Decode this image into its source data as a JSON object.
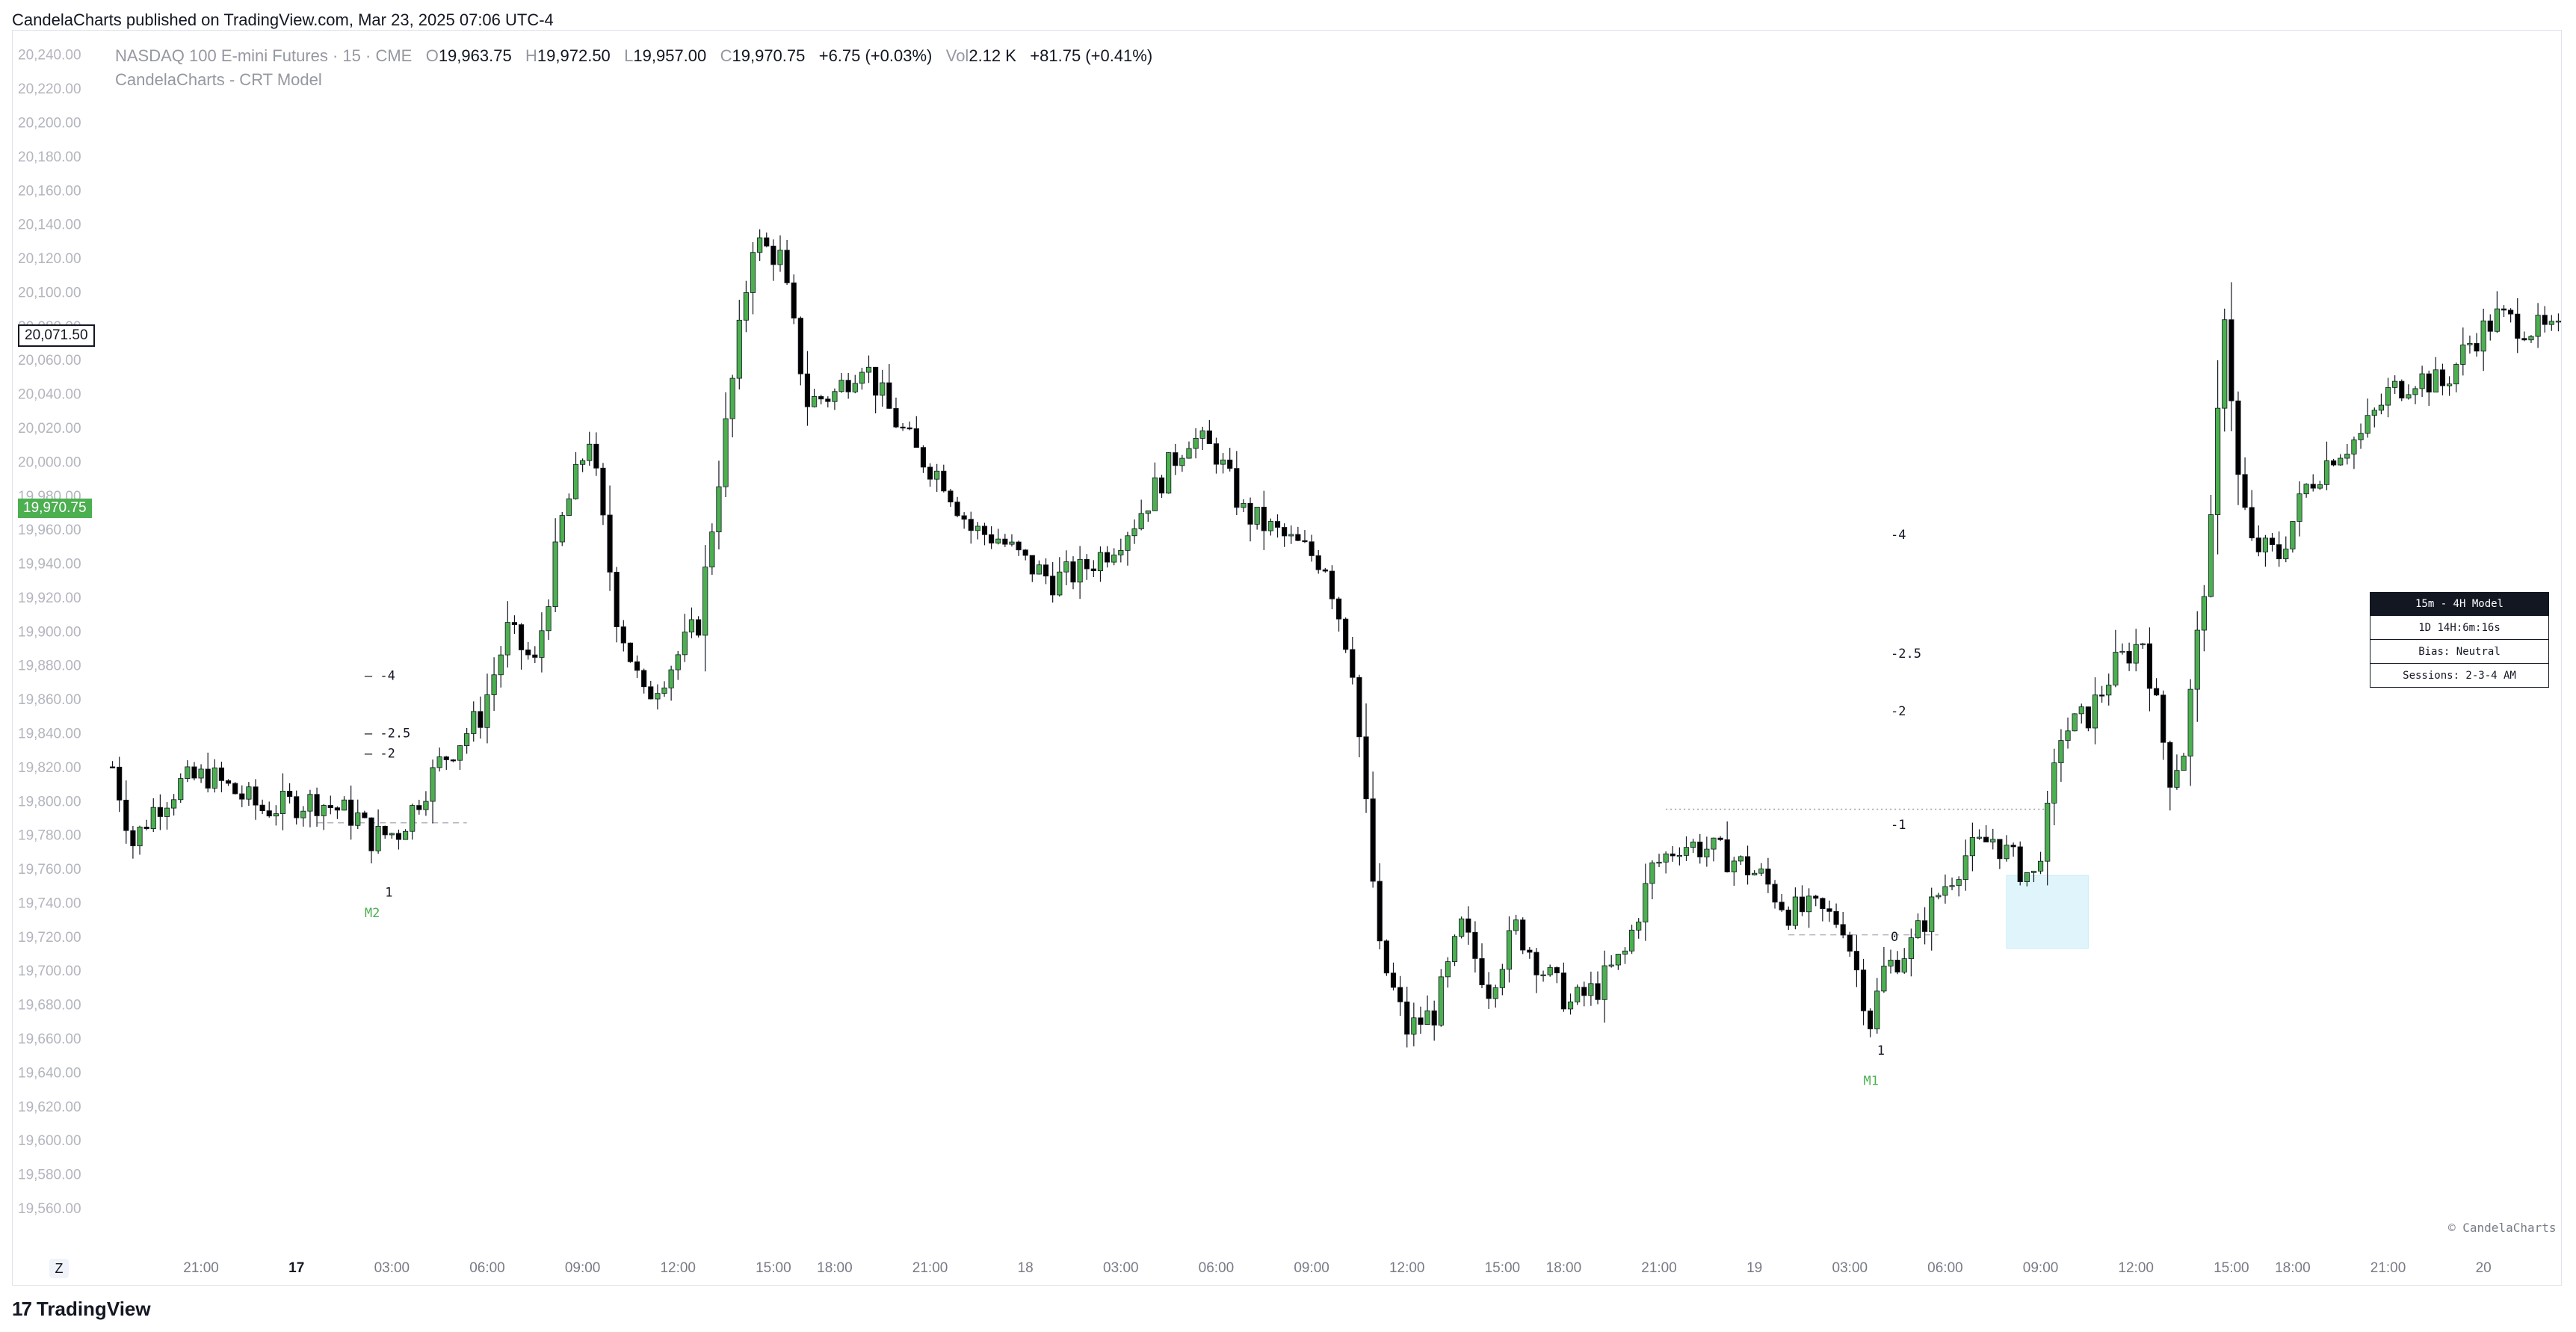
{
  "header": {
    "published": "CandelaCharts published on TradingView.com, Mar 23, 2025 07:06 UTC-4"
  },
  "legend": {
    "symbol": "NASDAQ 100 E-mini Futures · 15 · CME",
    "o_label": "O",
    "o_value": "19,963.75",
    "h_label": "H",
    "h_value": "19,972.50",
    "l_label": "L",
    "l_value": "19,957.00",
    "c_label": "C",
    "c_value": "19,970.75",
    "change": "+6.75 (+0.03%)",
    "vol_label": "Vol",
    "vol_value": "2.12 K",
    "vol_change": "+81.75 (+0.41%)",
    "indicator": "CandelaCharts - CRT Model"
  },
  "price_tags": {
    "crosshair": "20,071.50",
    "last": "19,970.75"
  },
  "info_table": {
    "title": "15m - 4H Model",
    "row1": "1D 14H:6m:16s",
    "row2": "Bias: Neutral",
    "row3": "Sessions: 2-3-4 AM"
  },
  "watermark": "© CandelaCharts",
  "footer": {
    "brand": "TradingView",
    "mark": "17"
  },
  "z_button": "Z",
  "colors": {
    "up": "#4caf50",
    "down": "#000000",
    "zone": "#e0f5fb",
    "text": "#131722"
  },
  "chart_data": {
    "type": "candlestick",
    "title": "NASDAQ 100 E-mini Futures · 15 · CME",
    "ylim": [
      19545,
      20250
    ],
    "y_ticks": [
      "20,240.00",
      "20,220.00",
      "20,200.00",
      "20,180.00",
      "20,160.00",
      "20,140.00",
      "20,120.00",
      "20,100.00",
      "20,080.00",
      "20,060.00",
      "20,040.00",
      "20,020.00",
      "20,000.00",
      "19,980.00",
      "19,960.00",
      "19,940.00",
      "19,920.00",
      "19,900.00",
      "19,880.00",
      "19,860.00",
      "19,840.00",
      "19,820.00",
      "19,800.00",
      "19,780.00",
      "19,760.00",
      "19,740.00",
      "19,720.00",
      "19,700.00",
      "19,680.00",
      "19,660.00",
      "19,640.00",
      "19,620.00",
      "19,600.00",
      "19,580.00",
      "19,560.00"
    ],
    "x_ticks": [
      {
        "i": 13,
        "label": "21:00"
      },
      {
        "i": 27,
        "label": "17"
      },
      {
        "i": 41,
        "label": "03:00"
      },
      {
        "i": 55,
        "label": "06:00"
      },
      {
        "i": 69,
        "label": "09:00"
      },
      {
        "i": 83,
        "label": "12:00"
      },
      {
        "i": 97,
        "label": "15:00"
      },
      {
        "i": 106,
        "label": "18:00"
      },
      {
        "i": 120,
        "label": "21:00"
      },
      {
        "i": 134,
        "label": "18"
      },
      {
        "i": 148,
        "label": "03:00"
      },
      {
        "i": 162,
        "label": "06:00"
      },
      {
        "i": 176,
        "label": "09:00"
      },
      {
        "i": 190,
        "label": "12:00"
      },
      {
        "i": 204,
        "label": "15:00"
      },
      {
        "i": 213,
        "label": "18:00"
      },
      {
        "i": 227,
        "label": "21:00"
      },
      {
        "i": 241,
        "label": "19"
      },
      {
        "i": 255,
        "label": "03:00"
      },
      {
        "i": 269,
        "label": "06:00"
      },
      {
        "i": 283,
        "label": "09:00"
      },
      {
        "i": 297,
        "label": "12:00"
      },
      {
        "i": 311,
        "label": "15:00"
      },
      {
        "i": 320,
        "label": "18:00"
      },
      {
        "i": 334,
        "label": "21:00"
      },
      {
        "i": 348,
        "label": "20"
      }
    ],
    "bold_x_ticks": [
      "17"
    ],
    "path_anchors": [
      [
        0,
        19820
      ],
      [
        3,
        19775
      ],
      [
        6,
        19795
      ],
      [
        10,
        19810
      ],
      [
        14,
        19815
      ],
      [
        18,
        19805
      ],
      [
        22,
        19795
      ],
      [
        26,
        19798
      ],
      [
        30,
        19800
      ],
      [
        36,
        19790
      ],
      [
        38,
        19778
      ],
      [
        42,
        19782
      ],
      [
        44,
        19795
      ],
      [
        48,
        19822
      ],
      [
        54,
        19850
      ],
      [
        58,
        19900
      ],
      [
        62,
        19880
      ],
      [
        66,
        19965
      ],
      [
        70,
        20015
      ],
      [
        74,
        19910
      ],
      [
        78,
        19860
      ],
      [
        82,
        19880
      ],
      [
        86,
        19905
      ],
      [
        90,
        20020
      ],
      [
        94,
        20130
      ],
      [
        98,
        20120
      ],
      [
        102,
        20035
      ],
      [
        106,
        20040
      ],
      [
        110,
        20060
      ],
      [
        114,
        20030
      ],
      [
        118,
        20005
      ],
      [
        122,
        19990
      ],
      [
        126,
        19960
      ],
      [
        130,
        19955
      ],
      [
        134,
        19940
      ],
      [
        138,
        19930
      ],
      [
        142,
        19935
      ],
      [
        146,
        19948
      ],
      [
        150,
        19965
      ],
      [
        154,
        19990
      ],
      [
        158,
        20015
      ],
      [
        162,
        20005
      ],
      [
        166,
        19970
      ],
      [
        170,
        19960
      ],
      [
        174,
        19950
      ],
      [
        178,
        19940
      ],
      [
        182,
        19880
      ],
      [
        186,
        19710
      ],
      [
        190,
        19665
      ],
      [
        194,
        19675
      ],
      [
        198,
        19725
      ],
      [
        202,
        19690
      ],
      [
        206,
        19725
      ],
      [
        210,
        19700
      ],
      [
        214,
        19680
      ],
      [
        218,
        19690
      ],
      [
        222,
        19710
      ],
      [
        226,
        19760
      ],
      [
        230,
        19775
      ],
      [
        234,
        19772
      ],
      [
        238,
        19765
      ],
      [
        242,
        19755
      ],
      [
        246,
        19735
      ],
      [
        250,
        19735
      ],
      [
        254,
        19728
      ],
      [
        256,
        19700
      ],
      [
        258,
        19670
      ],
      [
        260,
        19700
      ],
      [
        264,
        19715
      ],
      [
        268,
        19745
      ],
      [
        272,
        19768
      ],
      [
        276,
        19778
      ],
      [
        280,
        19760
      ],
      [
        282,
        19755
      ],
      [
        284,
        19790
      ],
      [
        286,
        19840
      ],
      [
        290,
        19850
      ],
      [
        294,
        19880
      ],
      [
        298,
        19895
      ],
      [
        300,
        19855
      ],
      [
        302,
        19815
      ],
      [
        304,
        19830
      ],
      [
        308,
        19960
      ],
      [
        310,
        20090
      ],
      [
        312,
        19990
      ],
      [
        314,
        19950
      ],
      [
        318,
        19945
      ],
      [
        322,
        19985
      ],
      [
        326,
        20005
      ],
      [
        330,
        20015
      ],
      [
        334,
        20040
      ],
      [
        338,
        20050
      ],
      [
        342,
        20045
      ],
      [
        346,
        20070
      ],
      [
        350,
        20085
      ],
      [
        354,
        20080
      ],
      [
        358,
        20075
      ]
    ],
    "crt_model_labels": {
      "left_levels": [
        {
          "label": "-4",
          "price": 19874
        },
        {
          "label": "-2.5",
          "price": 19840
        },
        {
          "label": "-2",
          "price": 19828
        },
        {
          "label": "1",
          "price": 19754
        }
      ],
      "left_marker": "M2",
      "right_levels": [
        {
          "label": "-4",
          "price": 19957
        },
        {
          "label": "-2.5",
          "price": 19887
        },
        {
          "label": "-2",
          "price": 19853
        },
        {
          "label": "-1",
          "price": 19786
        },
        {
          "label": "0",
          "price": 19720
        },
        {
          "label": "1",
          "price": 19653
        }
      ],
      "right_marker": "M1",
      "zone": {
        "from_i": 278,
        "to_i": 290,
        "top": 19756,
        "bottom": 19713
      },
      "dotted_level": {
        "price": 19795,
        "from_i": 228,
        "to_i": 284
      },
      "dashed_level_left": {
        "price": 19787,
        "from_i": 30,
        "to_i": 52
      },
      "dashed_level_right": {
        "price": 19721,
        "from_i": 246,
        "to_i": 268
      }
    }
  }
}
